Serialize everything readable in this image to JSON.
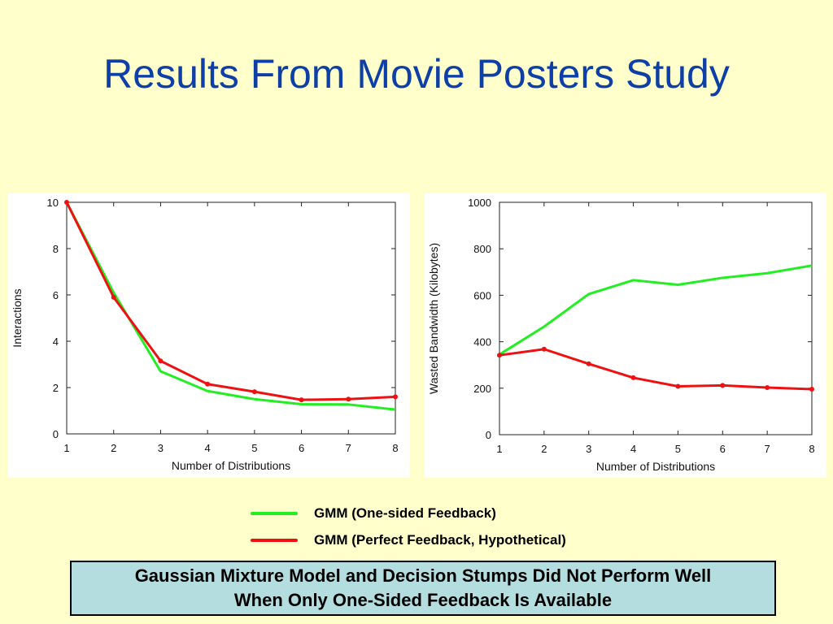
{
  "slide": {
    "title": "Results From Movie Posters Study"
  },
  "legend": {
    "items": [
      {
        "label": "GMM (One-sided Feedback)",
        "color": "#22ee22"
      },
      {
        "label": "GMM (Perfect Feedback, Hypothetical)",
        "color": "#ee1111"
      }
    ]
  },
  "summary": {
    "line1": "Gaussian Mixture Model and Decision Stumps Did Not Perform Well",
    "line2": "When Only One-Sided Feedback Is Available"
  },
  "chart_data": [
    {
      "type": "line",
      "xlabel": "Number of Distributions",
      "ylabel": "Interactions",
      "x": [
        1,
        2,
        3,
        4,
        5,
        6,
        7,
        8
      ],
      "xlim": [
        1,
        8
      ],
      "ylim": [
        0,
        10
      ],
      "yticks": [
        0,
        2,
        4,
        6,
        8,
        10
      ],
      "grid": false,
      "series": [
        {
          "color": "#22ee22",
          "markers": false,
          "values": [
            10,
            6.1,
            2.7,
            1.85,
            1.5,
            1.28,
            1.27,
            1.05
          ]
        },
        {
          "color": "#ee1111",
          "markers": true,
          "values": [
            10,
            5.9,
            3.15,
            2.15,
            1.82,
            1.47,
            1.5,
            1.6
          ]
        }
      ]
    },
    {
      "type": "line",
      "xlabel": "Number of Distributions",
      "ylabel": "Wasted Bandwidth (Kilobytes)",
      "x": [
        1,
        2,
        3,
        4,
        5,
        6,
        7,
        8
      ],
      "xlim": [
        1,
        8
      ],
      "ylim": [
        0,
        1000
      ],
      "yticks": [
        0,
        200,
        400,
        600,
        800,
        1000
      ],
      "grid": false,
      "series": [
        {
          "color": "#22ee22",
          "markers": false,
          "values": [
            345,
            465,
            605,
            665,
            645,
            675,
            695,
            728
          ]
        },
        {
          "color": "#ee1111",
          "markers": true,
          "values": [
            342,
            368,
            305,
            245,
            208,
            212,
            203,
            196
          ]
        }
      ]
    }
  ]
}
